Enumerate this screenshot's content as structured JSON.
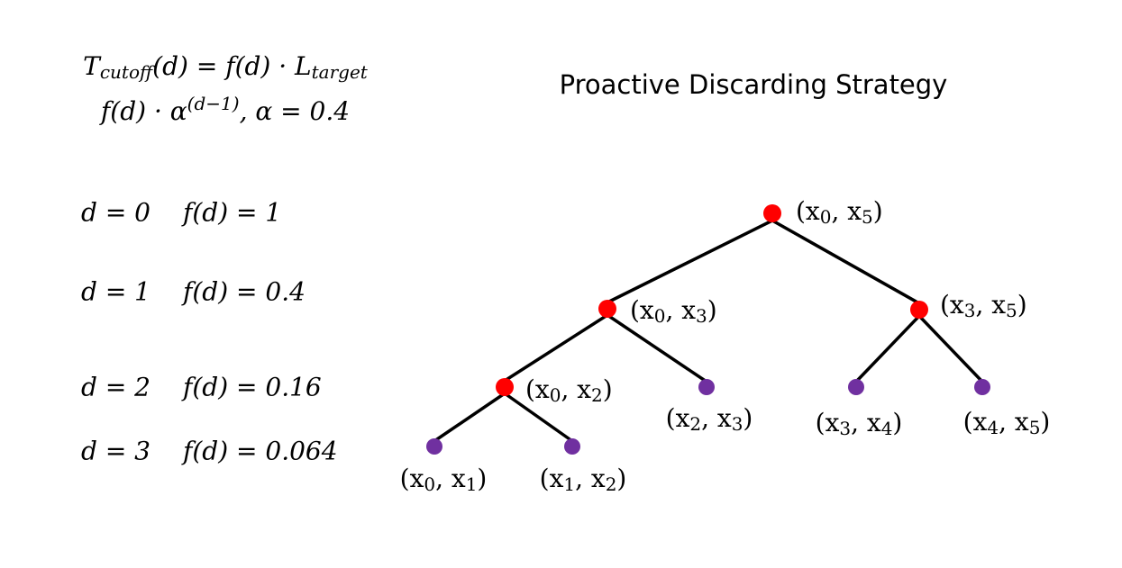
{
  "title": "Proactive Discarding Strategy",
  "formulas": [
    [
      {
        "t": "T"
      },
      {
        "sub": "cutoff"
      },
      {
        "t": "(d) = f(d) · L"
      },
      {
        "sub": "target"
      }
    ],
    [
      {
        "t": "f(d) · α"
      },
      {
        "sup": "(d−1)"
      },
      {
        "t": ", α = 0.4"
      }
    ]
  ],
  "levels": [
    {
      "depth": "d = 0",
      "factor": "f(d) = 1"
    },
    {
      "depth": "d = 1",
      "factor": "f(d) = 0.4"
    },
    {
      "depth": "d = 2",
      "factor": "f(d) = 0.16"
    },
    {
      "depth": "d = 3",
      "factor": "f(d) = 0.064"
    }
  ],
  "nodes": [
    {
      "label": [
        {
          "t": "(x"
        },
        {
          "sub": "0"
        },
        {
          "t": ", x"
        },
        {
          "sub": "5"
        },
        {
          "t": ")"
        }
      ]
    },
    {
      "label": [
        {
          "t": "(x"
        },
        {
          "sub": "0"
        },
        {
          "t": ", x"
        },
        {
          "sub": "3"
        },
        {
          "t": ")"
        }
      ]
    },
    {
      "label": [
        {
          "t": "(x"
        },
        {
          "sub": "3"
        },
        {
          "t": ", x"
        },
        {
          "sub": "5"
        },
        {
          "t": ")"
        }
      ]
    },
    {
      "label": [
        {
          "t": "(x"
        },
        {
          "sub": "0"
        },
        {
          "t": ", x"
        },
        {
          "sub": "2"
        },
        {
          "t": ")"
        }
      ]
    },
    {
      "label": [
        {
          "t": "(x"
        },
        {
          "sub": "2"
        },
        {
          "t": ", x"
        },
        {
          "sub": "3"
        },
        {
          "t": ")"
        }
      ]
    },
    {
      "label": [
        {
          "t": "(x"
        },
        {
          "sub": "3"
        },
        {
          "t": ", x"
        },
        {
          "sub": "4"
        },
        {
          "t": ")"
        }
      ]
    },
    {
      "label": [
        {
          "t": "(x"
        },
        {
          "sub": "4"
        },
        {
          "t": ", x"
        },
        {
          "sub": "5"
        },
        {
          "t": ")"
        }
      ]
    },
    {
      "label": [
        {
          "t": "(x"
        },
        {
          "sub": "0"
        },
        {
          "t": ", x"
        },
        {
          "sub": "1"
        },
        {
          "t": ")"
        }
      ]
    },
    {
      "label": [
        {
          "t": "(x"
        },
        {
          "sub": "1"
        },
        {
          "t": ", x"
        },
        {
          "sub": "2"
        },
        {
          "t": ")"
        }
      ]
    }
  ]
}
